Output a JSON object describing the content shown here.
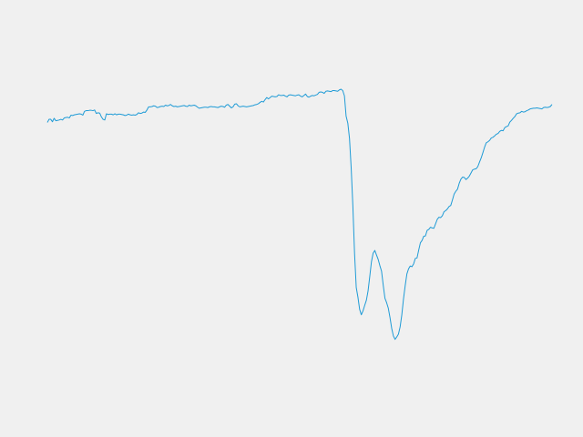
{
  "colors": {
    "background": "#f0f0f0",
    "line": "#1f9bd6"
  },
  "chart_data": {
    "type": "line",
    "title": "",
    "xlabel": "",
    "ylabel": "",
    "grid": false,
    "axes_visible": false,
    "xlim": [
      0,
      290
    ],
    "ylim": [
      0,
      100
    ],
    "series": [
      {
        "values": [
          80.4,
          81.3,
          81.3,
          80.6,
          81.6,
          80.9,
          81.0,
          81.1,
          81.3,
          81.1,
          81.7,
          81.8,
          81.9,
          81.7,
          82.5,
          82.4,
          82.6,
          82.7,
          82.8,
          82.9,
          82.8,
          82.5,
          83.6,
          83.8,
          83.8,
          83.9,
          83.9,
          83.8,
          84.0,
          83.0,
          83.2,
          83.1,
          82.0,
          81.3,
          81.1,
          82.9,
          82.7,
          82.8,
          82.8,
          82.6,
          82.9,
          82.6,
          82.8,
          82.8,
          82.7,
          82.6,
          82.4,
          82.5,
          82.8,
          82.6,
          82.5,
          82.6,
          82.5,
          82.7,
          83.2,
          83.0,
          83.1,
          83.4,
          83.3,
          84.0,
          84.9,
          84.9,
          85.0,
          85.2,
          85.1,
          84.7,
          84.8,
          85.0,
          85.1,
          85.0,
          85.4,
          85.2,
          85.3,
          85.6,
          85.2,
          85.0,
          85.1,
          84.9,
          85.0,
          85.1,
          85.2,
          85.3,
          85.1,
          85.0,
          85.4,
          85.2,
          85.3,
          85.4,
          85.2,
          84.8,
          84.5,
          84.6,
          84.7,
          84.8,
          84.8,
          84.7,
          84.9,
          85.0,
          84.9,
          84.9,
          84.8,
          84.7,
          84.9,
          85.1,
          85.0,
          84.8,
          85.4,
          85.6,
          85.1,
          84.6,
          84.9,
          85.7,
          85.8,
          85.2,
          84.9,
          85.0,
          85.1,
          85.0,
          84.9,
          85.0,
          85.1,
          85.2,
          85.3,
          85.5,
          85.6,
          85.8,
          86.2,
          86.5,
          86.3,
          87.0,
          87.6,
          87.2,
          87.6,
          88.0,
          87.9,
          87.8,
          87.9,
          88.4,
          88.2,
          88.2,
          88.3,
          88.0,
          87.8,
          88.3,
          88.4,
          88.3,
          88.2,
          88.1,
          88.3,
          88.4,
          88.0,
          87.8,
          88.2,
          88.6,
          87.9,
          87.7,
          88.0,
          88.2,
          88.1,
          88.3,
          88.5,
          89.1,
          89.2,
          89.1,
          88.8,
          89.4,
          89.5,
          89.4,
          89.3,
          89.6,
          89.6,
          89.5,
          89.4,
          89.8,
          90.0,
          89.6,
          88.1,
          82.2,
          80.2,
          75.8,
          67.3,
          56.3,
          42.5,
          32.7,
          29.9,
          26.4,
          24.8,
          25.9,
          27.5,
          29.0,
          31.7,
          35.8,
          40.1,
          42.6,
          43.4,
          42.1,
          40.8,
          39.0,
          37.4,
          33.3,
          29.6,
          28.3,
          26.7,
          24.0,
          20.9,
          18.7,
          17.7,
          18.4,
          19.2,
          21.3,
          24.8,
          29.4,
          33.2,
          36.6,
          38.1,
          38.9,
          38.7,
          39.5,
          41.1,
          41.2,
          43.5,
          45.6,
          46.3,
          47.5,
          47.6,
          49.2,
          49.5,
          50.1,
          49.9,
          49.8,
          51.1,
          52.4,
          53.0,
          52.9,
          53.4,
          54.6,
          54.9,
          55.4,
          56.1,
          56.4,
          58.0,
          59.7,
          60.5,
          61.1,
          62.8,
          64.0,
          64.6,
          64.5,
          63.9,
          64.3,
          64.9,
          65.8,
          66.7,
          66.9,
          67.0,
          67.6,
          68.9,
          70.1,
          71.6,
          73.2,
          74.5,
          74.8,
          75.2,
          75.9,
          76.1,
          76.5,
          77.0,
          77.2,
          77.8,
          78.1,
          78.0,
          78.9,
          79.2,
          79.4,
          80.5,
          81.0,
          81.6,
          82.1,
          82.9,
          83.1,
          83.2,
          83.6,
          83.4,
          83.5,
          83.8,
          84.0,
          84.3,
          84.4,
          84.5,
          84.5,
          84.6,
          84.5,
          84.4,
          84.3,
          84.7,
          84.8,
          84.7,
          84.8,
          85.0,
          85.6
        ]
      }
    ]
  }
}
